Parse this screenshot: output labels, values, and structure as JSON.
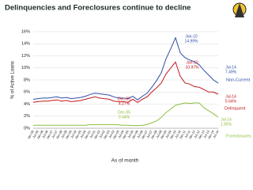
{
  "chart_data": {
    "type": "line",
    "title": "Delinquencies and Foreclosures continue to decline",
    "y_label": "% of Active Loans",
    "x_label": "As of month",
    "categories": [
      "Jan-95",
      "Jul-95",
      "Jan-96",
      "Jul-96",
      "Jan-97",
      "Jul-97",
      "Jan-98",
      "Jul-98",
      "Jan-99",
      "Jul-99",
      "Jan-00",
      "Jul-00",
      "Jan-01",
      "Jul-01",
      "Jan-02",
      "Jul-02",
      "Jan-03",
      "Jul-03",
      "Jan-04",
      "Jul-04",
      "Jan-05",
      "Jul-05",
      "Jan-06",
      "Jul-06",
      "Jan-07",
      "Jul-07",
      "Jan-08",
      "Jul-08",
      "Jan-09",
      "Jul-09",
      "Jan-10",
      "Jul-10",
      "Jan-11",
      "Jul-11",
      "Jan-12",
      "Jul-12",
      "Jan-13",
      "Jul-13",
      "Jan-14",
      "Jul-14"
    ],
    "series": [
      {
        "name": "Non-Current",
        "color": "#2f4fa8",
        "values": [
          4.8,
          4.9,
          5.0,
          5.0,
          5.1,
          5.2,
          5.0,
          5.1,
          4.9,
          5.0,
          5.1,
          5.3,
          5.6,
          5.8,
          5.7,
          5.6,
          5.5,
          5.2,
          5.0,
          5.0,
          4.9,
          5.3,
          4.7,
          5.3,
          5.8,
          6.8,
          7.9,
          9.2,
          11.5,
          13.2,
          14.99,
          12.5,
          11.7,
          11.3,
          11.0,
          10.5,
          9.6,
          8.8,
          8.0,
          7.49
        ]
      },
      {
        "name": "Delinquent",
        "color": "#c0181e",
        "values": [
          4.3,
          4.4,
          4.5,
          4.5,
          4.6,
          4.7,
          4.5,
          4.6,
          4.4,
          4.5,
          4.6,
          4.8,
          5.0,
          5.2,
          5.0,
          4.9,
          4.8,
          4.5,
          4.4,
          4.4,
          4.3,
          4.8,
          4.27,
          4.8,
          5.2,
          6.0,
          6.7,
          7.5,
          9.0,
          10.0,
          10.97,
          8.6,
          7.5,
          7.3,
          6.9,
          6.8,
          6.4,
          6.0,
          6.0,
          5.64
        ]
      },
      {
        "name": "Foreclosures",
        "color": "#8cbf3f",
        "values": [
          0.5,
          0.5,
          0.5,
          0.5,
          0.5,
          0.5,
          0.5,
          0.5,
          0.5,
          0.5,
          0.5,
          0.5,
          0.6,
          0.6,
          0.6,
          0.6,
          0.6,
          0.6,
          0.55,
          0.5,
          0.5,
          0.45,
          0.44,
          0.5,
          0.6,
          0.9,
          1.2,
          1.8,
          2.6,
          3.2,
          3.8,
          4.0,
          4.2,
          4.1,
          4.2,
          4.2,
          3.4,
          2.9,
          2.4,
          1.85
        ]
      }
    ],
    "ylim": [
      0,
      16
    ],
    "yticks": [
      {
        "value": 0,
        "label": "0%"
      },
      {
        "value": 2,
        "label": "2%"
      },
      {
        "value": 4,
        "label": "4%"
      },
      {
        "value": 6,
        "label": "6%"
      },
      {
        "value": 8,
        "label": "8%"
      },
      {
        "value": 10,
        "label": "10%"
      },
      {
        "value": 12,
        "label": "12%"
      },
      {
        "value": 14,
        "label": "14%"
      },
      {
        "value": 16,
        "label": "16%"
      }
    ],
    "grid": true,
    "annotations": [
      {
        "label": "Jan-10",
        "value_label": "14.99%"
      },
      {
        "label": "Jan-10",
        "value_label": "10.97%"
      },
      {
        "label": "Dec-05",
        "value_label": "4.27%"
      },
      {
        "label": "Dec-05",
        "value_label": "0.44%"
      },
      {
        "label": "Jul-14",
        "value_label": "7.49%"
      },
      {
        "label": "Jul-14",
        "value_label": "5.64%"
      },
      {
        "label": "Jul-14",
        "value_label": "1.85%"
      }
    ]
  }
}
